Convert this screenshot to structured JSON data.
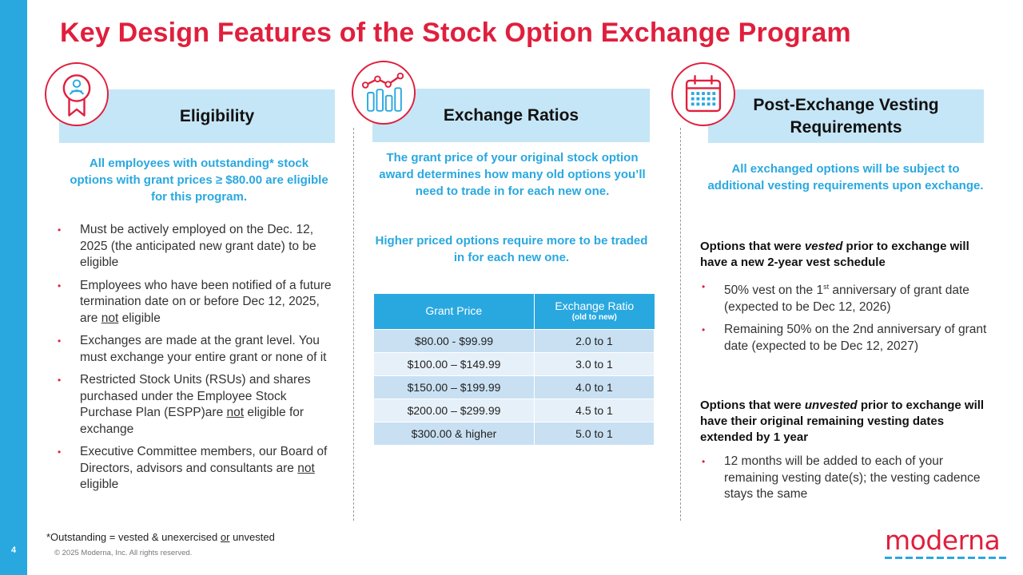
{
  "page": {
    "title": "Key Design Features of the Stock Option Exchange Program",
    "page_number": "4",
    "footnote_before": "*Outstanding = vested & unexercised ",
    "footnote_or": "or",
    "footnote_after": " unvested",
    "copyright": "© 2025 Moderna, Inc. All rights reserved.",
    "logo_text": "moderna"
  },
  "colors": {
    "accent_red": "#e01f3d",
    "accent_blue": "#29a8e0",
    "header_bg": "#c5e6f7"
  },
  "eligibility": {
    "icon": "award-ribbon-icon",
    "header": "Eligibility",
    "lead": "All employees with outstanding* stock options with grant prices ≥ $80.00 are eligible for this program.",
    "b1": "Must be actively employed on the Dec. 12, 2025 (the anticipated new grant date) to be eligible",
    "b2_before": "Employees who have been notified of a future termination date on or before Dec 12, 2025, are ",
    "b2_not": "not",
    "b2_after": " eligible",
    "b3": "Exchanges are made at the grant level. You must exchange your entire grant or none of it",
    "b4_before": "Restricted Stock Units (RSUs) and shares purchased under the Employee Stock Purchase Plan (ESPP)are ",
    "b4_not": "not",
    "b4_after": " eligible for exchange",
    "b5_before": "Executive Committee members, our Board of Directors, advisors and consultants are ",
    "b5_not": "not",
    "b5_after": " eligible"
  },
  "ratios": {
    "icon": "bar-chart-icon",
    "header": "Exchange Ratios",
    "lead1": "The grant price of your original stock option award determines how many old options you’ll need to trade in for each new one.",
    "lead2": "Higher priced options require more to be traded in for each new one.",
    "table": {
      "col1": "Grant Price",
      "col2": "Exchange Ratio",
      "col2_sub": "(old to  new)",
      "rows": [
        {
          "price": "$80.00 - $99.99",
          "ratio": "2.0 to 1"
        },
        {
          "price": "$100.00 – $149.99",
          "ratio": "3.0 to 1"
        },
        {
          "price": "$150.00 – $199.99",
          "ratio": "4.0 to 1"
        },
        {
          "price": "$200.00 – $299.99",
          "ratio": "4.5 to 1"
        },
        {
          "price": "$300.00 &  higher",
          "ratio": "5.0 to 1"
        }
      ]
    }
  },
  "vesting": {
    "icon": "calendar-icon",
    "header_line1": "Post-Exchange Vesting",
    "header_line2": "Requirements",
    "lead": "All exchanged options will be subject to additional vesting requirements upon exchange.",
    "vested_head_before": "Options that were ",
    "vested_head_em": "vested",
    "vested_head_after": " prior to exchange will have a new 2-year vest schedule",
    "v1_before": "50% vest on the 1",
    "v1_sup": "st",
    "v1_after": " anniversary of grant date (expected to be Dec 12, 2026)",
    "v2": "Remaining 50% on the 2nd anniversary of grant date (expected to be Dec 12, 2027)",
    "unvested_head_before": "Options that were ",
    "unvested_head_em": "unvested",
    "unvested_head_after": " prior to exchange will have their original remaining vesting dates extended by 1 year",
    "u1": "12 months will be added to each of your remaining vesting date(s); the vesting cadence stays the same"
  }
}
